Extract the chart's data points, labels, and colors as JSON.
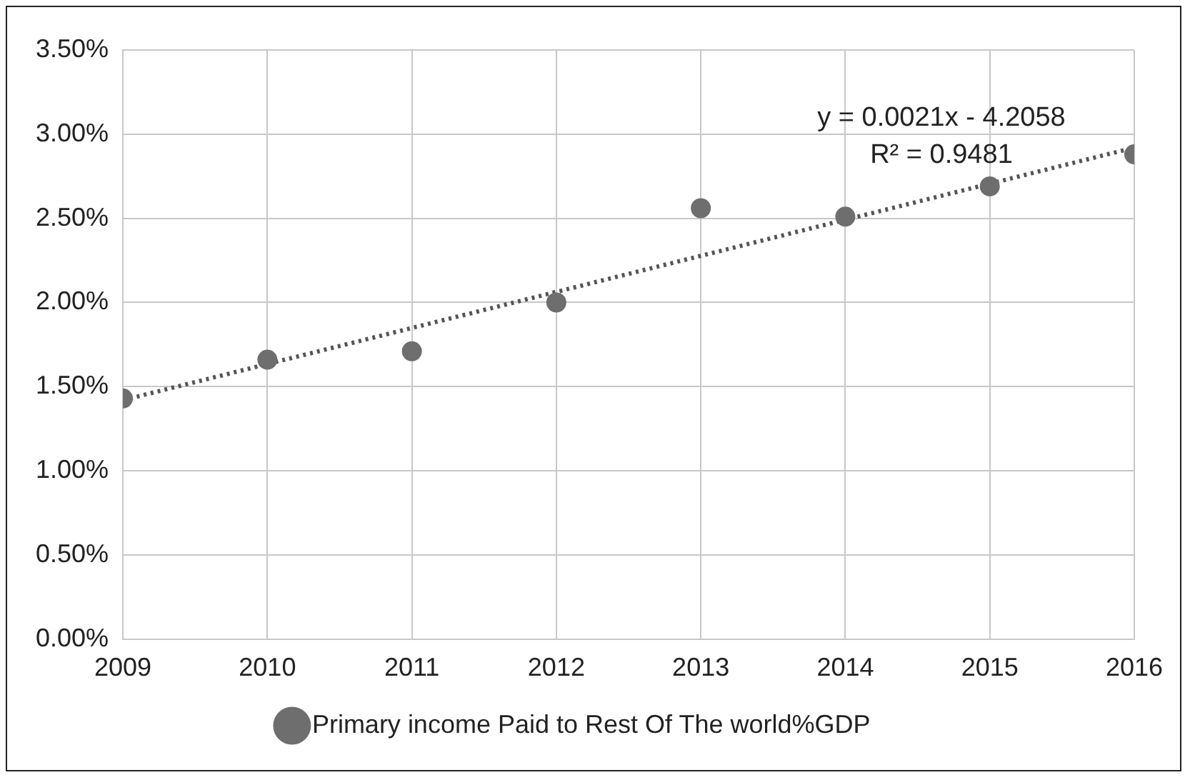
{
  "chart_data": {
    "type": "scatter",
    "x": [
      2009,
      2010,
      2011,
      2012,
      2013,
      2014,
      2015,
      2016
    ],
    "series": [
      {
        "name": "Primary income Paid to Rest Of The world%GDP",
        "color": "#6e6e6e",
        "values": [
          1.43,
          1.66,
          1.71,
          2.0,
          2.56,
          2.51,
          2.69,
          2.88
        ],
        "marker": "circle"
      },
      {
        "type": "line",
        "color": "#555555",
        "x": [
          2009,
          2016
        ],
        "values": [
          1.42,
          2.92
        ],
        "line_style": "dotted",
        "marker": "none"
      }
    ],
    "xlim": [
      2009,
      2016
    ],
    "xticks": [
      2009,
      2010,
      2011,
      2012,
      2013,
      2014,
      2015,
      2016
    ],
    "ylim": [
      0,
      3.5
    ],
    "yticks": [
      {
        "value": 0,
        "label": "0.00%"
      },
      {
        "value": 0.5,
        "label": "0.50%"
      },
      {
        "value": 1,
        "label": "1.00%"
      },
      {
        "value": 1.5,
        "label": "1.50%"
      },
      {
        "value": 2,
        "label": "2.00%"
      },
      {
        "value": 2.5,
        "label": "2.50%"
      },
      {
        "value": 3,
        "label": "3.00%"
      },
      {
        "value": 3.5,
        "label": "3.50%"
      }
    ],
    "grid": true,
    "legend": "bottom",
    "annotations": [
      "y = 0.0021x - 4.2058",
      "R² = 0.9481"
    ]
  }
}
